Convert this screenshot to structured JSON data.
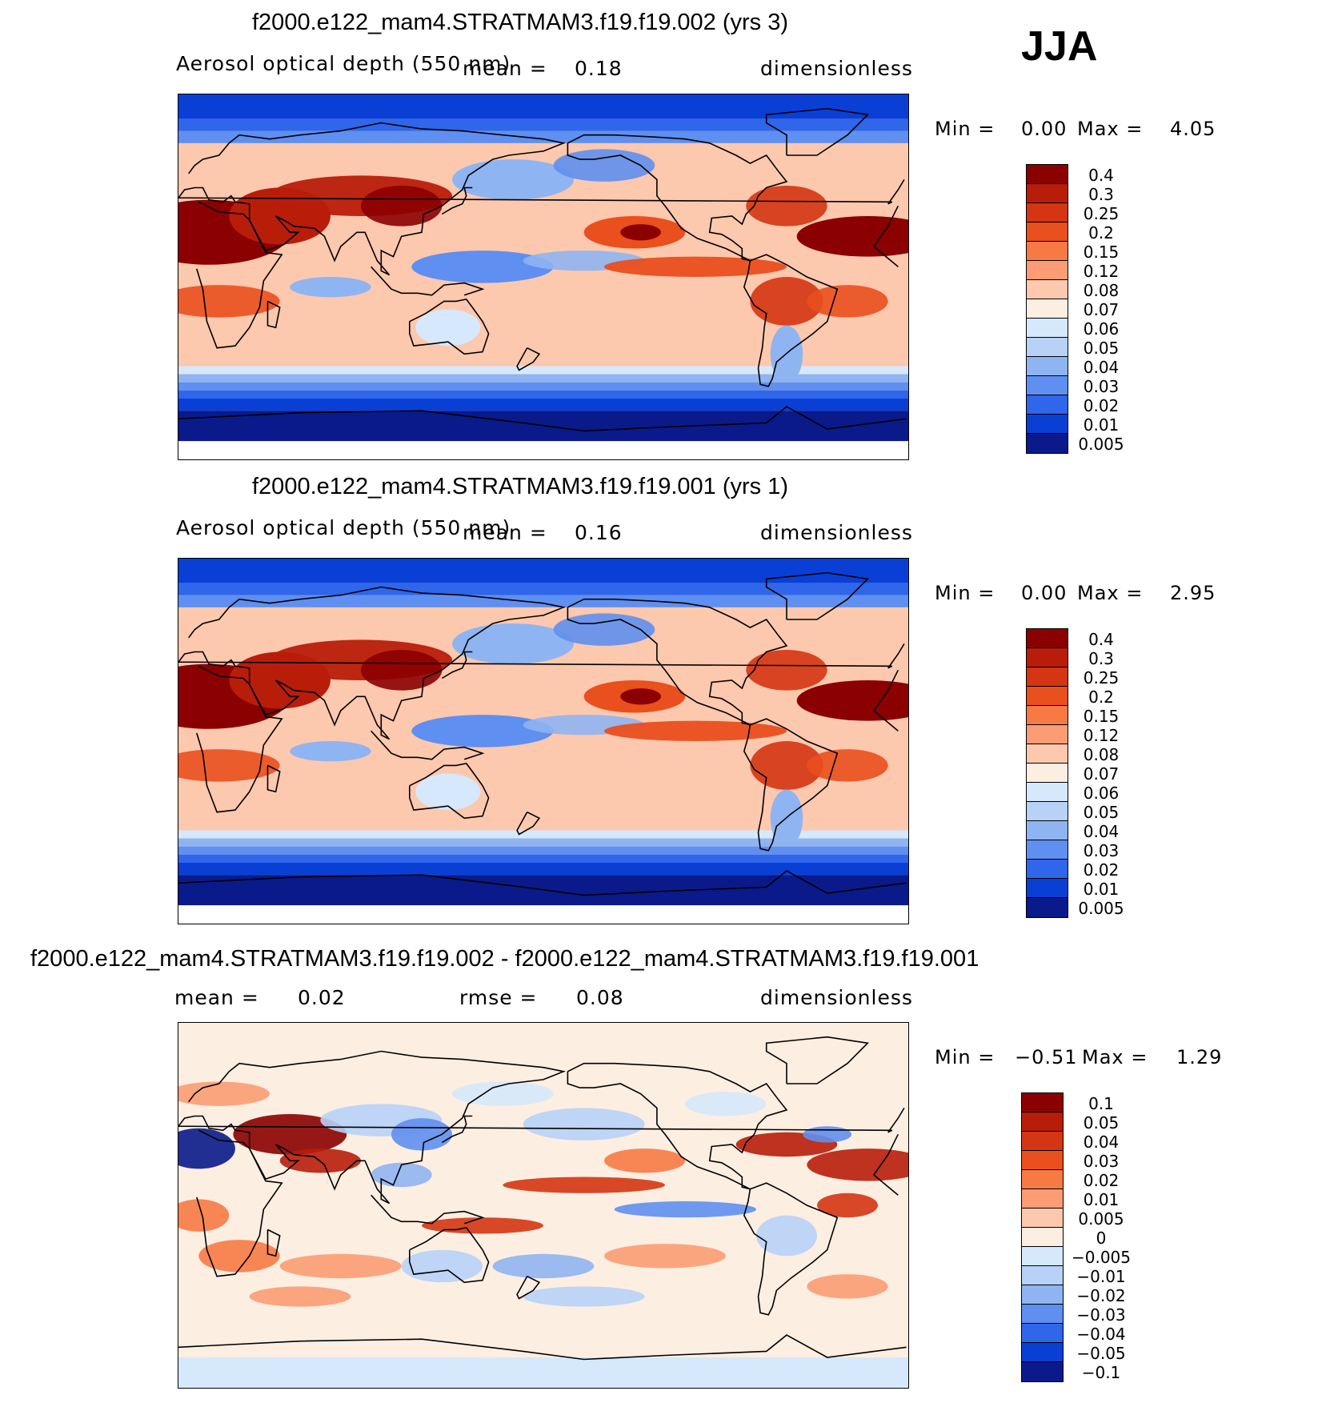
{
  "season": "JJA",
  "panels": [
    {
      "title": "f2000.e122_mam4.STRATMAM3.f19.f19.002 (yrs 3)",
      "variable": "Aerosol optical depth (550 nm)",
      "mean_label": "mean =",
      "mean_value": "0.18",
      "rmse_label": "",
      "rmse_value": "",
      "units": "dimensionless",
      "min_label": "Min =",
      "min_value": "0.00",
      "max_label": "Max =",
      "max_value": "4.05"
    },
    {
      "title": "f2000.e122_mam4.STRATMAM3.f19.f19.001 (yrs 1)",
      "variable": "Aerosol optical depth (550 nm)",
      "mean_label": "mean =",
      "mean_value": "0.16",
      "rmse_label": "",
      "rmse_value": "",
      "units": "dimensionless",
      "min_label": "Min =",
      "min_value": "0.00",
      "max_label": "Max =",
      "max_value": "2.95"
    },
    {
      "title": "f2000.e122_mam4.STRATMAM3.f19.f19.002 - f2000.e122_mam4.STRATMAM3.f19.f19.001",
      "variable": "",
      "mean_label": "mean =",
      "mean_value": "0.02",
      "rmse_label": "rmse =",
      "rmse_value": "0.08",
      "units": "dimensionless",
      "min_label": "Min =",
      "min_value": "−0.51",
      "max_label": "Max =",
      "max_value": "1.29"
    }
  ],
  "chart_data": [
    {
      "type": "heatmap",
      "title": "f2000.e122_mam4.STRATMAM3.f19.f19.002 (yrs 3)",
      "variable": "Aerosol optical depth (550 nm)",
      "units": "dimensionless",
      "mean": 0.18,
      "min": 0.0,
      "max": 4.05,
      "levels": [
        "0.4",
        "0.3",
        "0.25",
        "0.2",
        "0.15",
        "0.12",
        "0.08",
        "0.07",
        "0.06",
        "0.05",
        "0.04",
        "0.03",
        "0.02",
        "0.01",
        "0.005"
      ],
      "colors": [
        "#8b0000",
        "#b81d0a",
        "#d43512",
        "#ea4f1e",
        "#f77a45",
        "#fb9c74",
        "#fcc8ae",
        "#fdeee2",
        "#d6e8fb",
        "#b7d1f7",
        "#8fb4f2",
        "#5f8ff0",
        "#2f66ea",
        "#0a3fd6",
        "#0a1a8a"
      ]
    },
    {
      "type": "heatmap",
      "title": "f2000.e122_mam4.STRATMAM3.f19.f19.001 (yrs 1)",
      "variable": "Aerosol optical depth (550 nm)",
      "units": "dimensionless",
      "mean": 0.16,
      "min": 0.0,
      "max": 2.95,
      "levels": [
        "0.4",
        "0.3",
        "0.25",
        "0.2",
        "0.15",
        "0.12",
        "0.08",
        "0.07",
        "0.06",
        "0.05",
        "0.04",
        "0.03",
        "0.02",
        "0.01",
        "0.005"
      ],
      "colors": [
        "#8b0000",
        "#b81d0a",
        "#d43512",
        "#ea4f1e",
        "#f77a45",
        "#fb9c74",
        "#fcc8ae",
        "#fdeee2",
        "#d6e8fb",
        "#b7d1f7",
        "#8fb4f2",
        "#5f8ff0",
        "#2f66ea",
        "#0a3fd6",
        "#0a1a8a"
      ]
    },
    {
      "type": "heatmap",
      "title": "f2000.e122_mam4.STRATMAM3.f19.f19.002 - f2000.e122_mam4.STRATMAM3.f19.f19.001",
      "units": "dimensionless",
      "mean": 0.02,
      "rmse": 0.08,
      "min": -0.51,
      "max": 1.29,
      "levels": [
        "0.1",
        "0.05",
        "0.04",
        "0.03",
        "0.02",
        "0.01",
        "0.005",
        "0",
        "−0.005",
        "−0.01",
        "−0.02",
        "−0.03",
        "−0.04",
        "−0.05",
        "−0.1"
      ],
      "colors": [
        "#8b0000",
        "#b81d0a",
        "#d43512",
        "#ea4f1e",
        "#f77a45",
        "#fb9c74",
        "#fcc8ae",
        "#fdeee2",
        "#d6e8fb",
        "#b7d1f7",
        "#8fb4f2",
        "#5f8ff0",
        "#2f66ea",
        "#0a3fd6",
        "#0a1a8a"
      ]
    }
  ]
}
